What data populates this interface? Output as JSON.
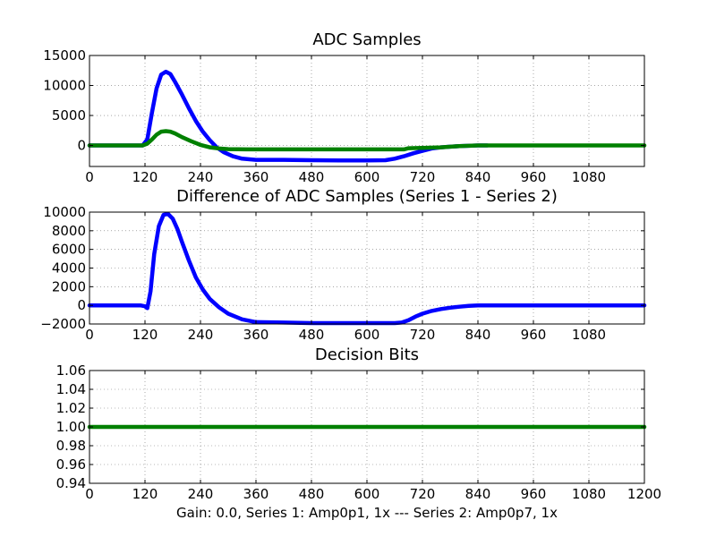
{
  "figure": {
    "footer": "Gain: 0.0, Series 1: Amp0p1, 1x --- Series 2: Amp0p7, 1x"
  },
  "chart_data": [
    {
      "type": "line",
      "title": "ADC Samples",
      "xlabel": "",
      "ylabel": "",
      "xlim": [
        0,
        1200
      ],
      "ylim": [
        -3500,
        15000
      ],
      "xticks": [
        0,
        120,
        240,
        360,
        480,
        600,
        720,
        840,
        960,
        1080
      ],
      "yticks": [
        0,
        5000,
        10000,
        15000
      ],
      "grid": true,
      "series": [
        {
          "color": "#0000ff",
          "x": [
            0,
            100,
            115,
            125,
            135,
            145,
            155,
            165,
            175,
            185,
            200,
            215,
            230,
            245,
            260,
            275,
            290,
            310,
            330,
            360,
            420,
            480,
            540,
            600,
            640,
            660,
            680,
            700,
            720,
            740,
            760,
            780,
            800,
            820,
            840,
            860
          ],
          "y": [
            0,
            0,
            0,
            1000,
            5500,
            9500,
            11800,
            12300,
            11900,
            10600,
            8500,
            6200,
            4100,
            2300,
            900,
            -300,
            -1100,
            -1800,
            -2200,
            -2400,
            -2400,
            -2450,
            -2500,
            -2500,
            -2450,
            -2200,
            -1800,
            -1300,
            -900,
            -500,
            -300,
            -200,
            -100,
            -50,
            0,
            0
          ]
        },
        {
          "color": "#008000",
          "x": [
            0,
            100,
            115,
            125,
            135,
            145,
            155,
            165,
            175,
            185,
            200,
            220,
            240,
            260,
            280,
            300,
            340,
            400,
            480,
            560,
            640,
            680,
            690,
            720,
            760,
            800,
            840,
            960,
            1080,
            1200
          ],
          "y": [
            0,
            0,
            0,
            300,
            1000,
            1800,
            2300,
            2400,
            2300,
            2000,
            1400,
            700,
            100,
            -300,
            -500,
            -600,
            -650,
            -650,
            -650,
            -650,
            -650,
            -650,
            -450,
            -400,
            -300,
            -100,
            0,
            0,
            0,
            0
          ]
        }
      ]
    },
    {
      "type": "line",
      "title": "Difference of ADC Samples (Series 1 - Series 2)",
      "xlabel": "",
      "ylabel": "",
      "xlim": [
        0,
        1200
      ],
      "ylim": [
        -2000,
        10000
      ],
      "xticks": [
        0,
        120,
        240,
        360,
        480,
        600,
        720,
        840,
        960,
        1080
      ],
      "yticks": [
        -2000,
        0,
        2000,
        4000,
        6000,
        8000,
        10000
      ],
      "ytick_labels": [
        "−2000",
        "0",
        "2000",
        "4000",
        "6000",
        "8000",
        "10000"
      ],
      "grid": true,
      "series": [
        {
          "color": "#0000ff",
          "x": [
            0,
            110,
            120,
            125,
            132,
            140,
            150,
            160,
            170,
            180,
            190,
            200,
            215,
            230,
            245,
            260,
            280,
            300,
            330,
            360,
            420,
            480,
            540,
            600,
            660,
            675,
            690,
            705,
            720,
            740,
            760,
            780,
            800,
            820,
            840,
            960,
            1080,
            1200
          ],
          "y": [
            0,
            0,
            -100,
            -300,
            1500,
            5500,
            8500,
            9700,
            9800,
            9300,
            8200,
            6800,
            4800,
            3000,
            1700,
            700,
            -200,
            -900,
            -1500,
            -1800,
            -1850,
            -1900,
            -1900,
            -1900,
            -1900,
            -1850,
            -1600,
            -1200,
            -900,
            -600,
            -400,
            -250,
            -150,
            -50,
            0,
            0,
            0,
            0
          ]
        }
      ]
    },
    {
      "type": "line",
      "title": "Decision Bits",
      "xlabel": "",
      "ylabel": "",
      "xlim": [
        0,
        1200
      ],
      "ylim": [
        0.94,
        1.06
      ],
      "xticks": [
        0,
        120,
        240,
        360,
        480,
        600,
        720,
        840,
        960,
        1080,
        1200
      ],
      "yticks": [
        0.94,
        0.96,
        0.98,
        1.0,
        1.02,
        1.04,
        1.06
      ],
      "ytick_labels": [
        "0.94",
        "0.96",
        "0.98",
        "1.00",
        "1.02",
        "1.04",
        "1.06"
      ],
      "grid": true,
      "series": [
        {
          "color": "#008000",
          "x": [
            0,
            1200
          ],
          "y": [
            1.0,
            1.0
          ]
        }
      ]
    }
  ]
}
